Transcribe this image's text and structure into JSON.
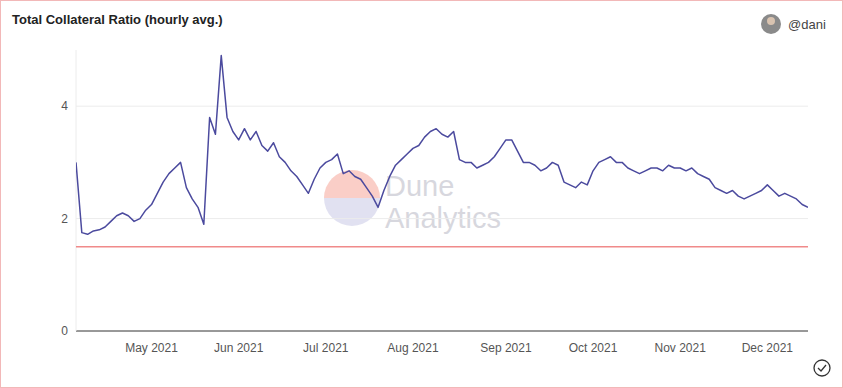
{
  "chart_data": {
    "type": "line",
    "title": "Total Collateral Ratio (hourly avg.)",
    "user": "@dani",
    "watermark": "Dune Analytics",
    "categories": [
      null,
      null,
      null,
      null,
      null,
      null,
      null,
      null,
      null,
      null,
      null,
      null,
      null,
      "May 2021",
      null,
      null,
      null,
      null,
      null,
      null,
      null,
      null,
      null,
      null,
      null,
      null,
      null,
      null,
      "Jun 2021",
      null,
      null,
      null,
      null,
      null,
      null,
      null,
      null,
      null,
      null,
      null,
      null,
      null,
      null,
      "Jul 2021",
      null,
      null,
      null,
      null,
      null,
      null,
      null,
      null,
      null,
      null,
      null,
      null,
      null,
      null,
      "Aug 2021",
      null,
      null,
      null,
      null,
      null,
      null,
      null,
      null,
      null,
      null,
      null,
      null,
      null,
      null,
      null,
      "Sep 2021",
      null,
      null,
      null,
      null,
      null,
      null,
      null,
      null,
      null,
      null,
      null,
      null,
      null,
      null,
      "Oct 2021",
      null,
      null,
      null,
      null,
      null,
      null,
      null,
      null,
      null,
      null,
      null,
      null,
      null,
      null,
      "Nov 2021",
      null,
      null,
      null,
      null,
      null,
      null,
      null,
      null,
      null,
      null,
      null,
      null,
      null,
      null,
      "Dec 2021",
      null,
      null,
      null,
      null,
      null,
      null,
      null
    ],
    "series": [
      {
        "color": "#4b4a9e",
        "values": [
          3.0,
          1.75,
          1.72,
          1.78,
          1.8,
          1.85,
          1.95,
          2.05,
          2.1,
          2.05,
          1.95,
          2.0,
          2.15,
          2.25,
          2.45,
          2.65,
          2.8,
          2.9,
          3.0,
          2.55,
          2.35,
          2.2,
          1.9,
          3.8,
          3.5,
          4.9,
          3.8,
          3.55,
          3.4,
          3.6,
          3.4,
          3.55,
          3.3,
          3.2,
          3.35,
          3.1,
          3.0,
          2.85,
          2.75,
          2.6,
          2.45,
          2.7,
          2.9,
          3.0,
          3.05,
          3.15,
          2.8,
          2.85,
          2.75,
          2.7,
          2.55,
          2.4,
          2.2,
          2.5,
          2.75,
          2.95,
          3.05,
          3.15,
          3.25,
          3.3,
          3.45,
          3.55,
          3.6,
          3.5,
          3.45,
          3.55,
          3.05,
          3.0,
          3.0,
          2.9,
          2.95,
          3.0,
          3.1,
          3.25,
          3.4,
          3.4,
          3.2,
          3.0,
          3.0,
          2.95,
          2.85,
          2.9,
          3.0,
          2.95,
          2.65,
          2.6,
          2.55,
          2.65,
          2.6,
          2.85,
          3.0,
          3.05,
          3.1,
          3.0,
          3.0,
          2.9,
          2.85,
          2.8,
          2.85,
          2.9,
          2.9,
          2.85,
          2.95,
          2.9,
          2.9,
          2.85,
          2.9,
          2.8,
          2.75,
          2.7,
          2.55,
          2.5,
          2.45,
          2.5,
          2.4,
          2.35,
          2.4,
          2.45,
          2.5,
          2.6,
          2.5,
          2.4,
          2.45,
          2.4,
          2.35,
          2.25,
          2.2
        ]
      },
      {
        "color": "#f08a8a",
        "values": [
          1.5,
          1.5,
          1.5,
          1.5,
          1.5,
          1.5,
          1.5,
          1.5,
          1.5,
          1.5,
          1.5,
          1.5,
          1.5,
          1.5,
          1.5,
          1.5,
          1.5,
          1.5,
          1.5,
          1.5,
          1.5,
          1.5,
          1.5,
          1.5,
          1.5,
          1.5,
          1.5,
          1.5,
          1.5,
          1.5,
          1.5,
          1.5,
          1.5,
          1.5,
          1.5,
          1.5,
          1.5,
          1.5,
          1.5,
          1.5,
          1.5,
          1.5,
          1.5,
          1.5,
          1.5,
          1.5,
          1.5,
          1.5,
          1.5,
          1.5,
          1.5,
          1.5,
          1.5,
          1.5,
          1.5,
          1.5,
          1.5,
          1.5,
          1.5,
          1.5,
          1.5,
          1.5,
          1.5,
          1.5,
          1.5,
          1.5,
          1.5,
          1.5,
          1.5,
          1.5,
          1.5,
          1.5,
          1.5,
          1.5,
          1.5,
          1.5,
          1.5,
          1.5,
          1.5,
          1.5,
          1.5,
          1.5,
          1.5,
          1.5,
          1.5,
          1.5,
          1.5,
          1.5,
          1.5,
          1.5,
          1.5,
          1.5,
          1.5,
          1.5,
          1.5,
          1.5,
          1.5,
          1.5,
          1.5,
          1.5,
          1.5,
          1.5,
          1.5,
          1.5,
          1.5,
          1.5,
          1.5,
          1.5,
          1.5,
          1.5,
          1.5,
          1.5,
          1.5,
          1.5,
          1.5,
          1.5,
          1.5,
          1.5,
          1.5,
          1.5,
          1.5,
          1.5,
          1.5,
          1.5,
          1.5,
          1.5,
          1.5
        ]
      }
    ],
    "ylim": [
      0,
      5
    ],
    "yticks": [
      0,
      2,
      4
    ],
    "grid": true
  }
}
